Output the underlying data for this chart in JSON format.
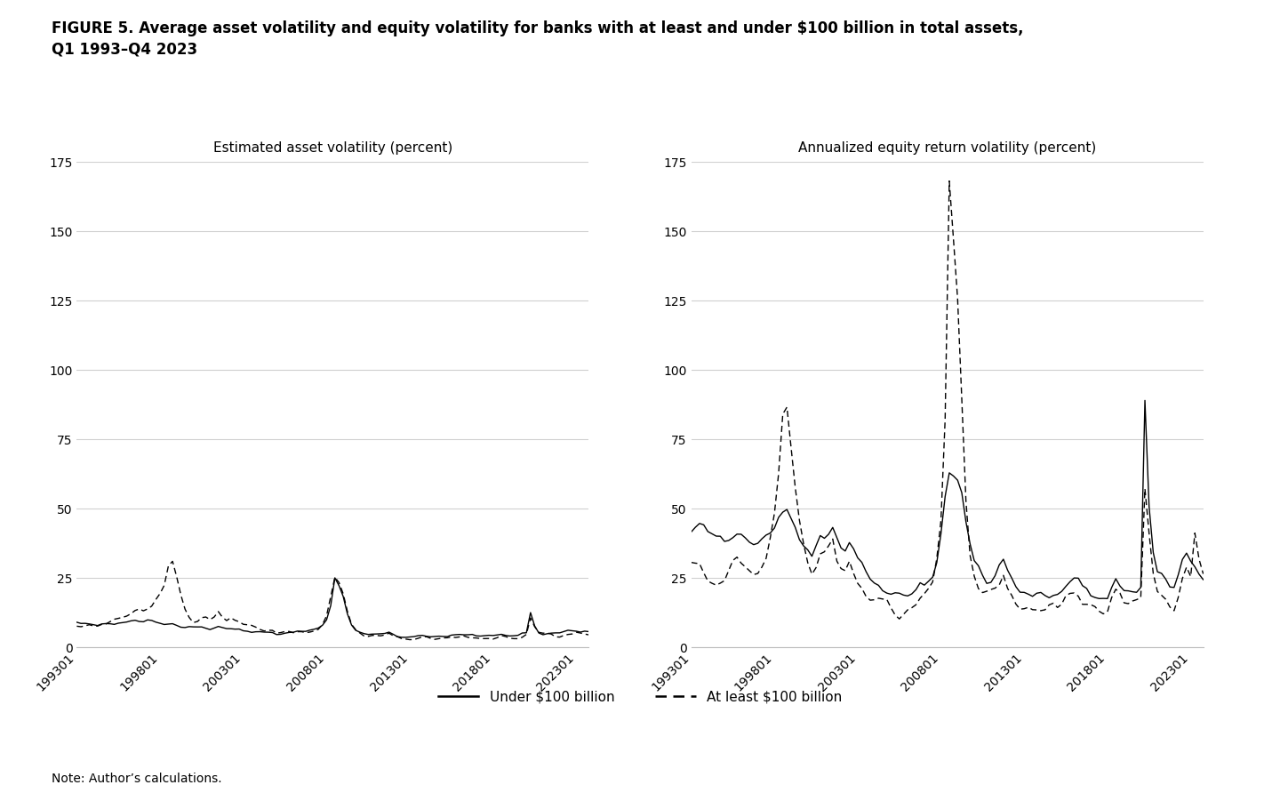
{
  "title": "FIGURE 5. Average asset volatility and equity volatility for banks with at least and under $100 billion in total assets,\nQ1 1993–Q4 2023",
  "left_panel_title": "Estimated asset volatility (percent)",
  "right_panel_title": "Annualized equity return volatility (percent)",
  "legend_solid": "Under $100 billion",
  "legend_dashed": "At least $100 billion",
  "note": "Note: Author’s calculations.",
  "ylim": [
    0,
    175
  ],
  "yticks": [
    0,
    25,
    50,
    75,
    100,
    125,
    150,
    175
  ],
  "xtick_labels": [
    "199301",
    "199801",
    "200301",
    "200801",
    "201301",
    "201801",
    "202301"
  ],
  "background_color": "#ffffff",
  "grid_color": "#d0d0d0",
  "line_color": "#000000",
  "title_fontsize": 12,
  "axis_title_fontsize": 11,
  "tick_fontsize": 10,
  "legend_fontsize": 11,
  "note_fontsize": 10
}
